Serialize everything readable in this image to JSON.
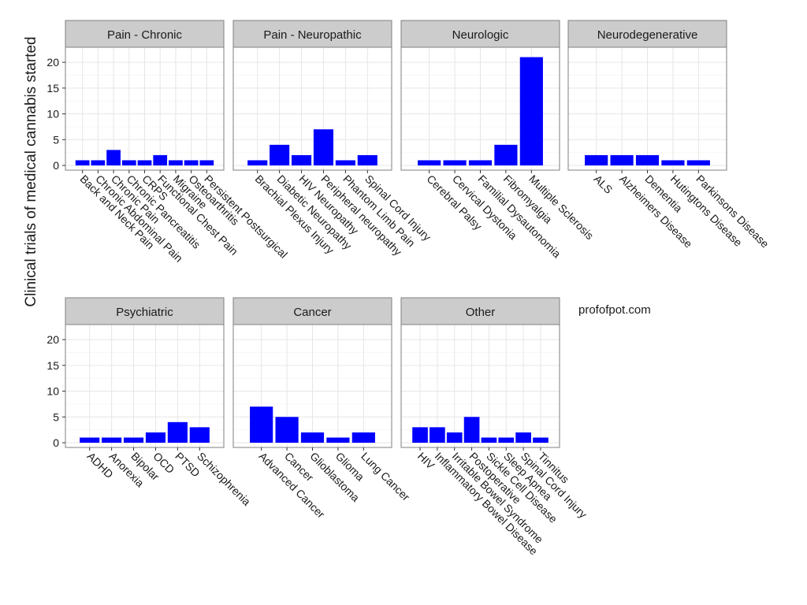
{
  "chart_data": {
    "type": "bar",
    "ylabel": "Clinical trials of medical cannabis started",
    "xlabel": "",
    "ylim": [
      0,
      22
    ],
    "yticks": [
      0,
      5,
      10,
      15,
      20
    ],
    "grid": true,
    "bar_color": "#0000ff",
    "strip_color": "#cccccc",
    "watermark": "profofpot.com",
    "facets": [
      {
        "name": "Pain - Chronic",
        "categories": [
          "Back and Neck Pain",
          "Chronic Abdominal Pain",
          "Chronic Pain",
          "Chronic Pancreatitis",
          "CRPS",
          "Functional Chest Pain",
          "Migraine",
          "Osteoarthritis",
          "Persistent Postsurgical"
        ],
        "values": [
          1,
          1,
          3,
          1,
          1,
          2,
          1,
          1,
          1
        ]
      },
      {
        "name": "Pain - Neuropathic",
        "categories": [
          "Brachial Plexus Injury",
          "Diabetic Neuropathy",
          "HIV Neuropathy",
          "Peripheral neuropathy",
          "Phantom Limb Pain",
          "Spinal Cord Injury"
        ],
        "values": [
          1,
          4,
          2,
          7,
          1,
          2
        ]
      },
      {
        "name": "Neurologic",
        "categories": [
          "Cerebral Palsy",
          "Cervical Dystonia",
          "Familial Dysautonomia",
          "Fibromyalgia",
          "Multiple Sclerosis"
        ],
        "values": [
          1,
          1,
          1,
          4,
          21
        ]
      },
      {
        "name": "Neurodegenerative",
        "categories": [
          "ALS",
          "Alzheimers Disease",
          "Dementia",
          "Hutingtons Disease",
          "Parkinsons Disease"
        ],
        "values": [
          2,
          2,
          2,
          1,
          1
        ]
      },
      {
        "name": "Psychiatric",
        "categories": [
          "ADHD",
          "Anorexia",
          "Bipolar",
          "OCD",
          "PTSD",
          "Schizophrenia"
        ],
        "values": [
          1,
          1,
          1,
          2,
          4,
          3
        ]
      },
      {
        "name": "Cancer",
        "categories": [
          "Advanced Cancer",
          "Cancer",
          "Glioblastoma",
          "Glioma",
          "Lung Cancer"
        ],
        "values": [
          7,
          5,
          2,
          1,
          2
        ]
      },
      {
        "name": "Other",
        "categories": [
          "HIV",
          "Inflammatory Bowel Disease",
          "Irritable Bowel Syndrome",
          "Postoperative",
          "Sickle Cell Disease",
          "Sleep Apnea",
          "Spinal Cord Injury",
          "Tinnitus"
        ],
        "values": [
          3,
          3,
          2,
          5,
          1,
          1,
          2,
          1
        ]
      }
    ]
  }
}
